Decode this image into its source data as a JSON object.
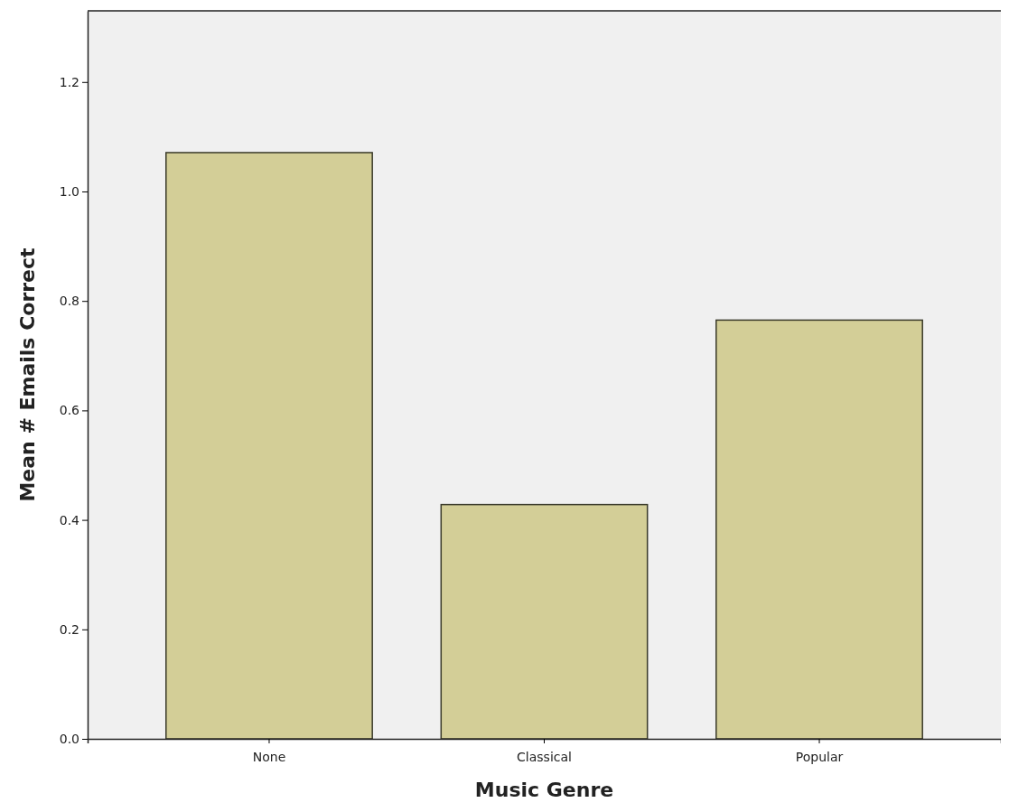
{
  "chart_data": {
    "type": "bar",
    "xlabel": "Music Genre",
    "ylabel": "Mean # Emails Correct",
    "categories": [
      "None",
      "Classical",
      "Popular"
    ],
    "values": [
      1.071,
      0.428,
      0.765
    ],
    "color": "#d3ce97",
    "ylim": [
      0,
      1.33
    ],
    "yticks": [
      {
        "value": 0,
        "label": "0.0"
      },
      {
        "value": 0.2,
        "label": "0.2"
      },
      {
        "value": 0.4,
        "label": "0.4"
      },
      {
        "value": 0.6,
        "label": "0.6"
      },
      {
        "value": 0.8,
        "label": "0.8"
      },
      {
        "value": 1,
        "label": "1.0"
      },
      {
        "value": 1.2,
        "label": "1.2"
      }
    ],
    "grid": false
  }
}
